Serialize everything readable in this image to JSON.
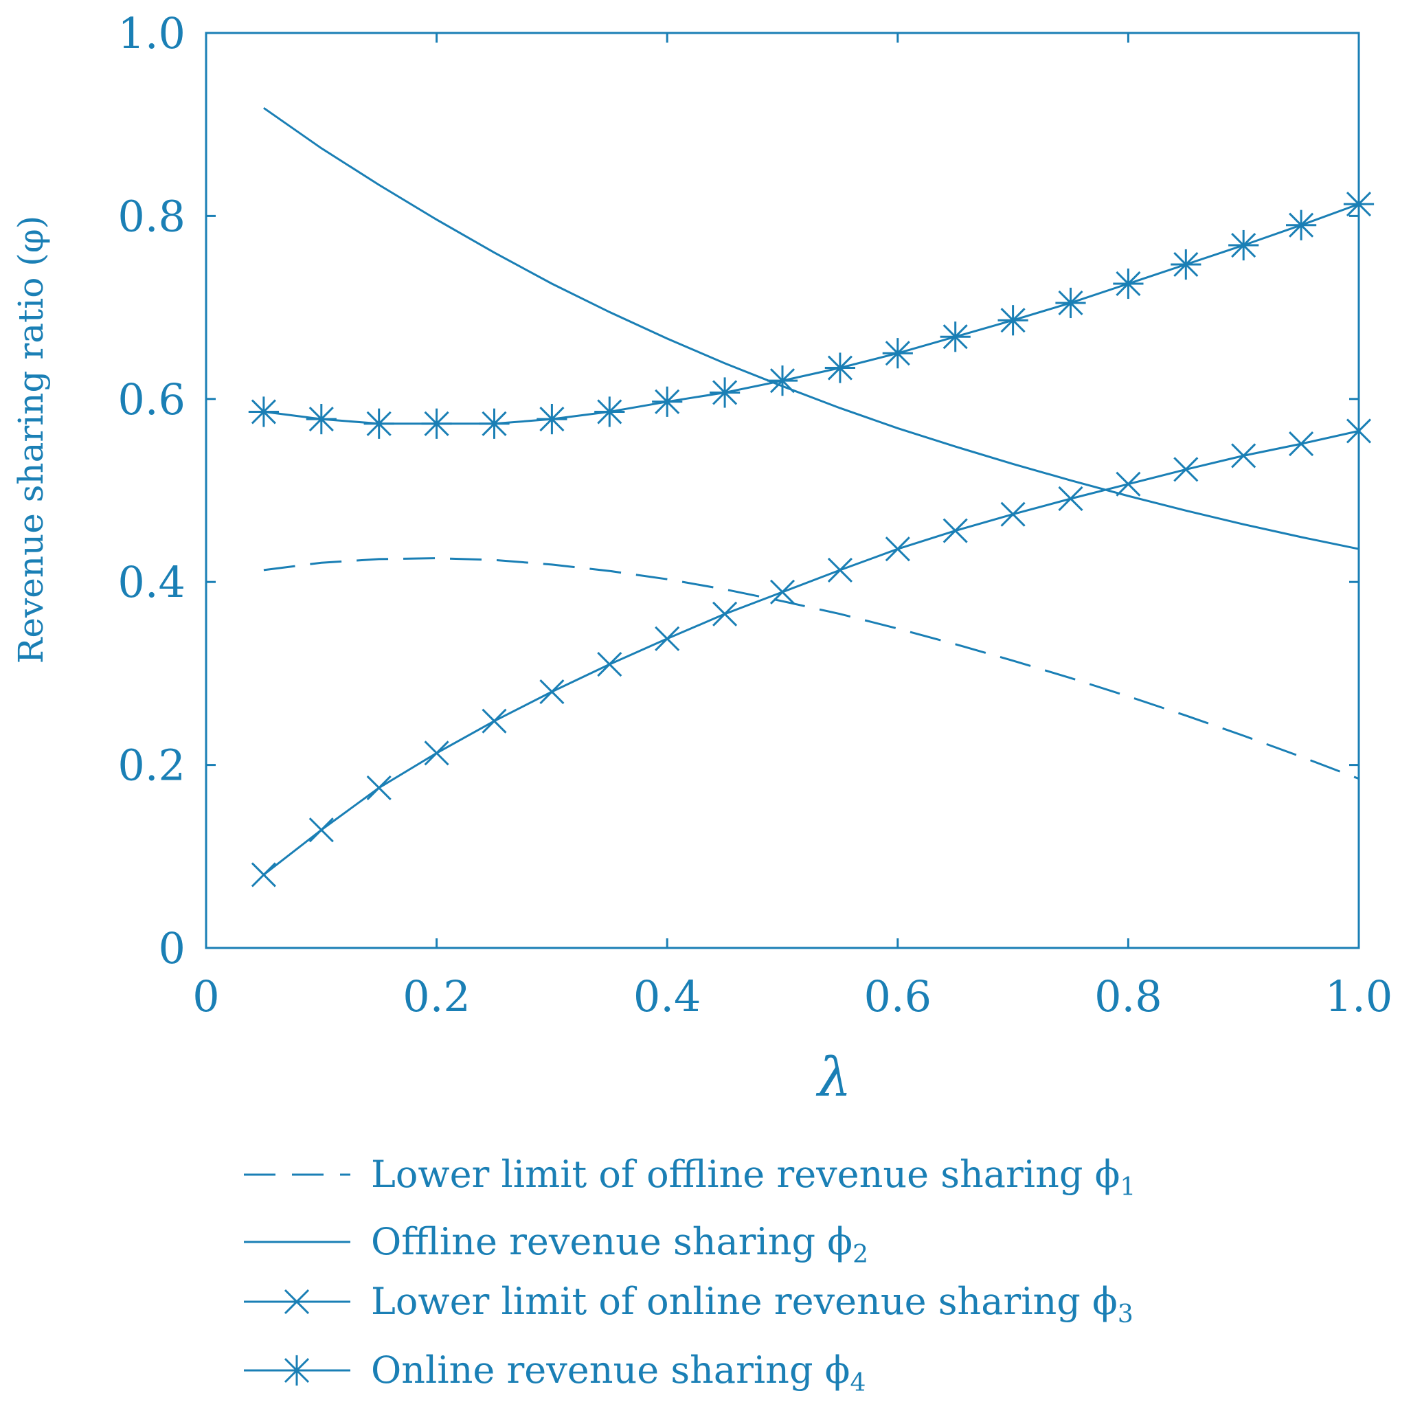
{
  "chart_data": {
    "type": "line",
    "title": "",
    "xlabel": "λ",
    "ylabel": "Revenue sharing ratio (φ)",
    "xlim": [
      0,
      1.0
    ],
    "ylim": [
      0,
      1.0
    ],
    "xticks": [
      "0",
      "0.2",
      "0.4",
      "0.6",
      "0.8",
      "1.0"
    ],
    "yticks": [
      "0",
      "0.2",
      "0.4",
      "0.6",
      "0.8",
      "1.0"
    ],
    "grid": false,
    "legend_position": "below",
    "colors": {
      "line": "#1a7fb5",
      "text": "#1a7fb5",
      "axis": "#1a7fb5"
    },
    "x": [
      0.05,
      0.1,
      0.15,
      0.2,
      0.25,
      0.3,
      0.35,
      0.4,
      0.45,
      0.5,
      0.55,
      0.6,
      0.65,
      0.7,
      0.75,
      0.8,
      0.85,
      0.9,
      0.95,
      1.0
    ],
    "series": [
      {
        "name": "Lower limit of offline revenue sharing ϕ1",
        "style": "dashed",
        "marker": "none",
        "values": [
          0.413,
          0.421,
          0.425,
          0.426,
          0.424,
          0.419,
          0.412,
          0.403,
          0.392,
          0.379,
          0.365,
          0.349,
          0.332,
          0.314,
          0.295,
          0.275,
          0.254,
          0.232,
          0.209,
          0.185
        ]
      },
      {
        "name": "Offline revenue sharing ϕ2",
        "style": "solid",
        "marker": "none",
        "values": [
          0.918,
          0.874,
          0.834,
          0.796,
          0.76,
          0.726,
          0.695,
          0.666,
          0.639,
          0.614,
          0.59,
          0.568,
          0.548,
          0.529,
          0.511,
          0.494,
          0.478,
          0.463,
          0.449,
          0.436
        ]
      },
      {
        "name": "Lower limit of online revenue sharing ϕ3",
        "style": "solid",
        "marker": "x",
        "values": [
          0.08,
          0.129,
          0.175,
          0.213,
          0.248,
          0.28,
          0.31,
          0.338,
          0.365,
          0.389,
          0.413,
          0.436,
          0.456,
          0.474,
          0.491,
          0.507,
          0.523,
          0.538,
          0.551,
          0.565
        ]
      },
      {
        "name": "Online revenue sharing ϕ4",
        "style": "solid",
        "marker": "star",
        "values": [
          0.586,
          0.578,
          0.573,
          0.573,
          0.573,
          0.578,
          0.586,
          0.597,
          0.607,
          0.62,
          0.634,
          0.65,
          0.668,
          0.686,
          0.705,
          0.726,
          0.747,
          0.768,
          0.79,
          0.813
        ]
      }
    ]
  },
  "legend": {
    "items": [
      {
        "text": "Lower limit of offline revenue sharing ϕ",
        "sub": "1"
      },
      {
        "text": "Offline revenue sharing ϕ",
        "sub": "2"
      },
      {
        "text": "Lower limit of online revenue sharing ϕ",
        "sub": "3"
      },
      {
        "text": "Online revenue sharing ϕ",
        "sub": "4"
      }
    ]
  }
}
